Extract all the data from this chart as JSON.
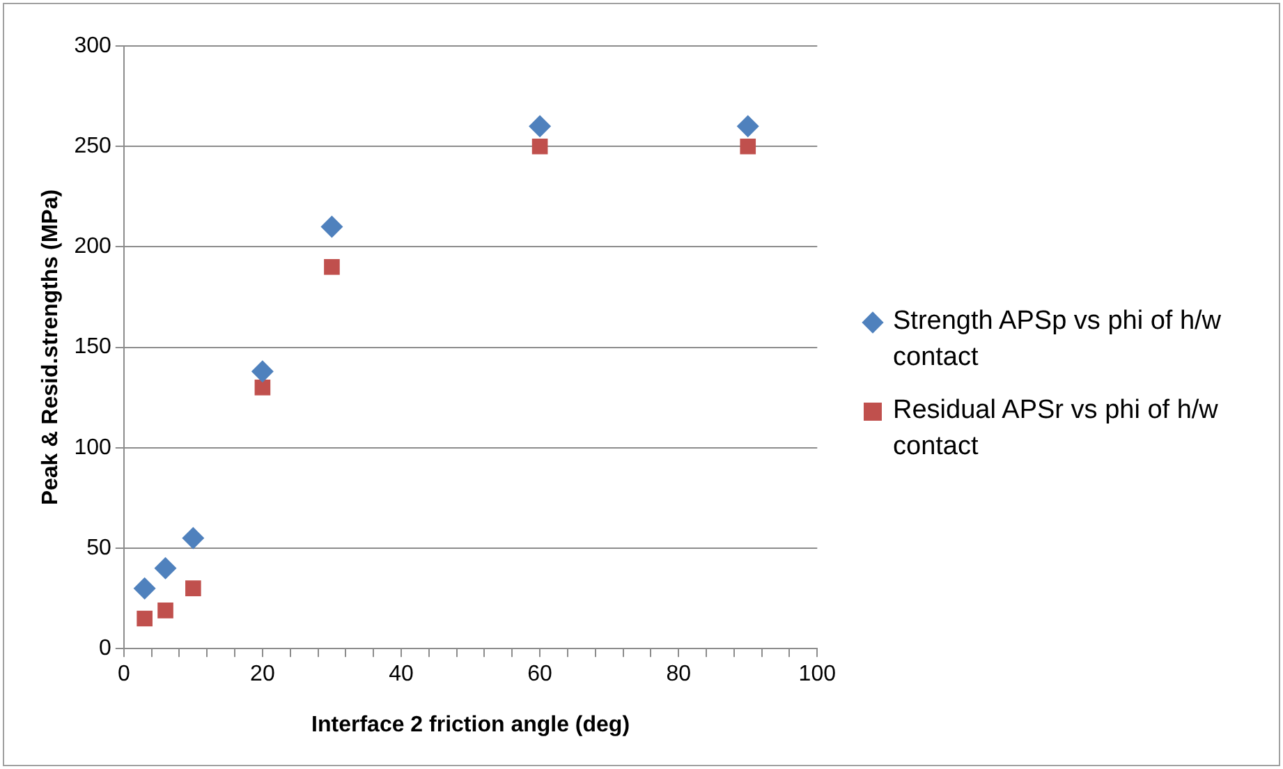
{
  "chart_data": {
    "type": "scatter",
    "xlabel": "Interface 2 friction angle (deg)",
    "ylabel": "Peak & Resid.strengths (MPa)",
    "xlim": [
      0,
      100
    ],
    "xticks": [
      0,
      {
        "value": 4,
        "label": null
      },
      {
        "value": 8,
        "label": null
      },
      {
        "value": 12,
        "label": null
      },
      {
        "value": 16,
        "label": null
      },
      20,
      {
        "value": 24,
        "label": null
      },
      {
        "value": 28,
        "label": null
      },
      {
        "value": 32,
        "label": null
      },
      {
        "value": 36,
        "label": null
      },
      40,
      {
        "value": 44,
        "label": null
      },
      {
        "value": 48,
        "label": null
      },
      {
        "value": 52,
        "label": null
      },
      {
        "value": 56,
        "label": null
      },
      60,
      {
        "value": 64,
        "label": null
      },
      {
        "value": 68,
        "label": null
      },
      {
        "value": 72,
        "label": null
      },
      {
        "value": 76,
        "label": null
      },
      80,
      {
        "value": 84,
        "label": null
      },
      {
        "value": 88,
        "label": null
      },
      {
        "value": 92,
        "label": null
      },
      {
        "value": 96,
        "label": null
      },
      100
    ],
    "ylim": [
      0,
      300
    ],
    "yticks": [
      0,
      50,
      100,
      150,
      200,
      250,
      300
    ],
    "grid": "y",
    "legend": "right",
    "x": [
      3,
      6,
      10,
      20,
      30,
      60,
      90
    ],
    "series": [
      {
        "name": "Strength APSp vs phi of h/w contact",
        "color": "#4f81bd",
        "marker": "diamond",
        "values": [
          30,
          40,
          55,
          138,
          210,
          260,
          260
        ]
      },
      {
        "name": "Residual APSr vs phi of h/w contact",
        "color": "#c0504d",
        "marker": "square",
        "values": [
          15,
          19,
          30,
          130,
          190,
          250,
          250
        ]
      }
    ]
  }
}
